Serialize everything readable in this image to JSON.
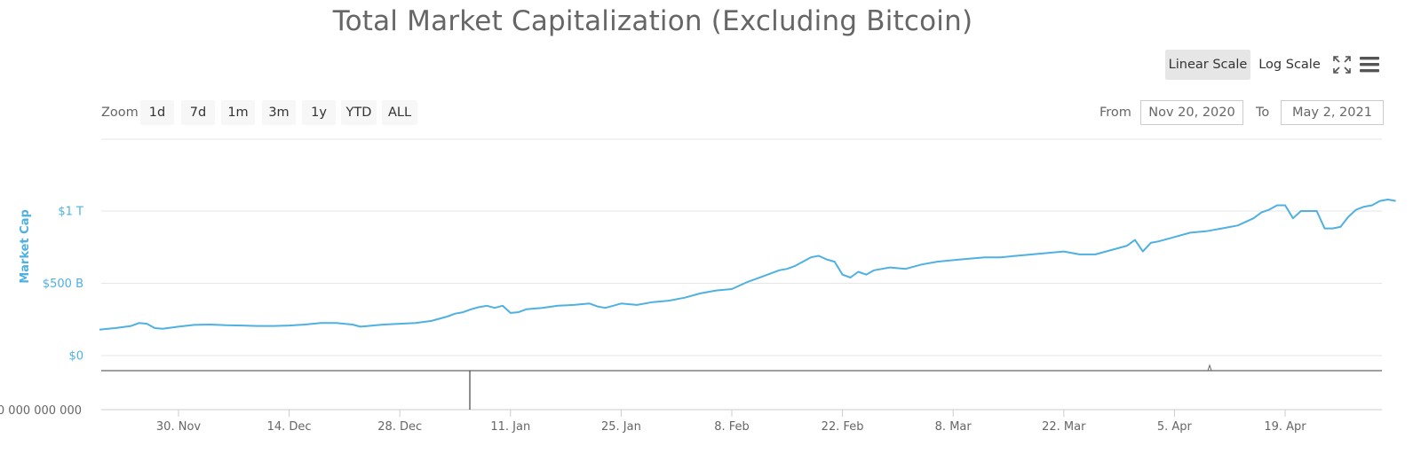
{
  "chart_data": {
    "type": "line",
    "title": "Total Market Capitalization (Excluding Bitcoin)",
    "ylabel": "Market Cap",
    "y_ticks": [
      {
        "value": 0,
        "label": "$0"
      },
      {
        "value": 500,
        "label": "$500 B"
      },
      {
        "value": 1000,
        "label": "$1 T"
      }
    ],
    "x_ticks": [
      "30. Nov",
      "14. Dec",
      "28. Dec",
      "11. Jan",
      "25. Jan",
      "8. Feb",
      "22. Feb",
      "8. Mar",
      "22. Mar",
      "5. Apr",
      "19. Apr"
    ],
    "x_tick_days": [
      10,
      24,
      38,
      52,
      66,
      80,
      94,
      108,
      122,
      136,
      150
    ],
    "grid": true,
    "series": [
      {
        "name": "",
        "color": "#4fb0e2",
        "x_day": [
          0,
          2,
          4,
          5,
          6,
          7,
          8,
          10,
          12,
          14,
          16,
          18,
          20,
          22,
          24,
          26,
          28,
          30,
          32,
          33,
          34,
          35,
          36,
          38,
          40,
          42,
          44,
          45,
          46,
          47,
          48,
          49,
          50,
          51,
          52,
          53,
          54,
          56,
          58,
          60,
          62,
          63,
          64,
          65,
          66,
          68,
          70,
          72,
          74,
          76,
          78,
          80,
          82,
          84,
          86,
          87,
          88,
          89,
          90,
          91,
          92,
          93,
          94,
          95,
          96,
          97,
          98,
          100,
          102,
          104,
          106,
          108,
          110,
          112,
          114,
          116,
          118,
          120,
          122,
          124,
          126,
          128,
          130,
          131,
          132,
          133,
          134,
          136,
          138,
          140,
          142,
          144,
          146,
          147,
          148,
          149,
          150,
          151,
          152,
          153,
          154,
          155,
          156,
          157,
          158,
          159,
          160,
          161,
          162,
          163,
          164
        ],
        "values": [
          180,
          190,
          205,
          225,
          220,
          190,
          185,
          200,
          212,
          215,
          210,
          208,
          205,
          205,
          208,
          215,
          225,
          225,
          215,
          200,
          205,
          210,
          215,
          220,
          225,
          240,
          270,
          290,
          300,
          320,
          335,
          345,
          330,
          345,
          295,
          300,
          320,
          330,
          345,
          350,
          360,
          340,
          330,
          345,
          360,
          350,
          370,
          380,
          400,
          430,
          450,
          460,
          510,
          550,
          590,
          600,
          620,
          650,
          680,
          690,
          665,
          650,
          560,
          540,
          580,
          560,
          590,
          610,
          600,
          630,
          650,
          660,
          670,
          680,
          680,
          690,
          700,
          710,
          720,
          700,
          700,
          730,
          760,
          800,
          720,
          780,
          790,
          820,
          850,
          860,
          880,
          900,
          950,
          990,
          1010,
          1040,
          1040,
          950,
          1000,
          1000,
          1000,
          880,
          880,
          890,
          960,
          1010,
          1030,
          1040,
          1070,
          1080,
          1070
        ]
      }
    ]
  },
  "toolbar": {
    "linear_scale_label": "Linear Scale",
    "log_scale_label": "Log Scale",
    "fullscreen_icon": "fullscreen-icon",
    "menu_icon": "hamburger-menu-icon"
  },
  "range_selector": {
    "zoom_label": "Zoom",
    "buttons": [
      "1d",
      "7d",
      "1m",
      "3m",
      "1y",
      "YTD",
      "ALL"
    ],
    "from_label": "From",
    "from_value": "Nov 20, 2020",
    "to_label": "To",
    "to_value": "May 2, 2021"
  },
  "navigator": {
    "partial_tick_label": "0 000 000 000"
  },
  "colors": {
    "series": "#4fb0e2",
    "axis_text": "#4fb0e2",
    "grid": "#e6e6e6"
  }
}
